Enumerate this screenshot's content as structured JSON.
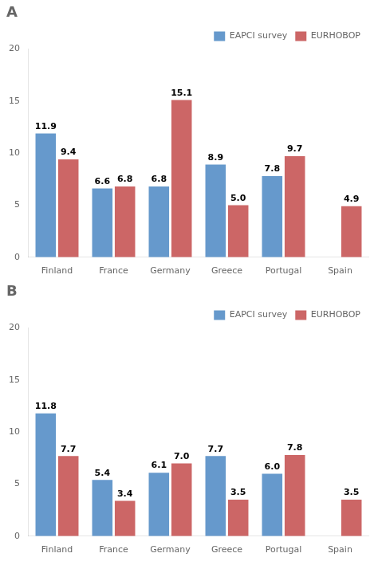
{
  "chart_data": [
    {
      "type": "bar",
      "title": "A",
      "categories": [
        "Finland",
        "France",
        "Germany",
        "Greece",
        "Portugal",
        "Spain"
      ],
      "series": [
        {
          "name": "EAPCI survey",
          "color": "#6699CC",
          "values": [
            11.9,
            6.6,
            6.8,
            8.9,
            7.8,
            null
          ],
          "value_labels": [
            "11.9",
            "6.6",
            "6.8",
            "8.9",
            "7.8",
            null
          ]
        },
        {
          "name": "EURHOBOP",
          "color": "#CC6666",
          "values": [
            9.4,
            6.8,
            15.1,
            5.0,
            9.7,
            4.9
          ],
          "value_labels": [
            "9.4",
            "6.8",
            "15.1",
            "5.0",
            "9.7",
            "4.9"
          ]
        }
      ],
      "ylim": [
        0,
        20
      ],
      "yticks": [
        0,
        5,
        10,
        15,
        20
      ],
      "grid": false,
      "legend": "upper right",
      "data_labels": true
    },
    {
      "type": "bar",
      "title": "B",
      "categories": [
        "Finland",
        "France",
        "Germany",
        "Greece",
        "Portugal",
        "Spain"
      ],
      "series": [
        {
          "name": "EAPCI survey",
          "color": "#6699CC",
          "values": [
            11.8,
            5.4,
            6.1,
            7.7,
            6.0,
            null
          ],
          "value_labels": [
            "11.8",
            "5.4",
            "6.1",
            "7.7",
            "6.0",
            null
          ]
        },
        {
          "name": "EURHOBOP",
          "color": "#CC6666",
          "values": [
            7.7,
            3.4,
            7.0,
            3.5,
            7.8,
            3.5
          ],
          "value_labels": [
            "7.7",
            "3.4",
            "7.0",
            "3.5",
            "7.8",
            "3.5"
          ]
        }
      ],
      "ylim": [
        0,
        20
      ],
      "yticks": [
        0,
        5,
        10,
        15,
        20
      ],
      "grid": false,
      "legend": "upper right",
      "data_labels": true
    }
  ]
}
